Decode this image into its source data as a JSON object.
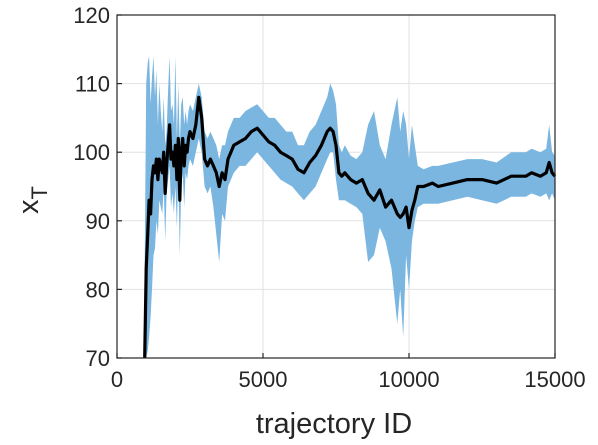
{
  "chart_data": {
    "type": "line",
    "title": "",
    "xlabel": "trajectory ID",
    "ylabel": {
      "base": "x",
      "subscript": "T"
    },
    "xlim": [
      0,
      15000
    ],
    "ylim": [
      70,
      120
    ],
    "xticks": [
      0,
      5000,
      10000,
      15000
    ],
    "xtick_labels": [
      "0",
      "5000",
      "10000",
      "15000"
    ],
    "yticks": [
      70,
      80,
      90,
      100,
      110,
      120
    ],
    "ytick_labels": [
      "70",
      "80",
      "90",
      "100",
      "110",
      "120"
    ],
    "grid": true,
    "colors": {
      "mean_line": "#000000",
      "band": "#7ab6e0",
      "axes": "#262626",
      "grid": "#e2e2e2"
    },
    "series": [
      {
        "kind": "line",
        "x": [
          950,
          1000,
          1050,
          1100,
          1150,
          1200,
          1250,
          1300,
          1350,
          1400,
          1450,
          1500,
          1550,
          1600,
          1650,
          1700,
          1750,
          1800,
          1850,
          1900,
          1950,
          2000,
          2050,
          2100,
          2150,
          2200,
          2250,
          2300,
          2350,
          2400,
          2450,
          2500,
          2600,
          2700,
          2800,
          2900,
          3000,
          3100,
          3200,
          3300,
          3400,
          3500,
          3600,
          3700,
          3800,
          3900,
          4000,
          4200,
          4400,
          4600,
          4800,
          5000,
          5200,
          5400,
          5600,
          5800,
          6000,
          6200,
          6400,
          6600,
          6800,
          7000,
          7200,
          7300,
          7400,
          7500,
          7600,
          7700,
          7800,
          8000,
          8200,
          8400,
          8600,
          8800,
          9000,
          9200,
          9400,
          9600,
          9700,
          9800,
          9900,
          10000,
          10100,
          10200,
          10300,
          10500,
          10800,
          11000,
          11500,
          12000,
          12500,
          13000,
          13500,
          14000,
          14200,
          14500,
          14700,
          14800,
          14900,
          15000
        ],
        "y": [
          70,
          83,
          88,
          93,
          91,
          96,
          98,
          97,
          99,
          96,
          99,
          98,
          97,
          100,
          94,
          98,
          101,
          104,
          99,
          100,
          98,
          101,
          96,
          102,
          93,
          100,
          102,
          98,
          101,
          100,
          102,
          103,
          102,
          104,
          108,
          105,
          99,
          98,
          99,
          98,
          97,
          95,
          97,
          96,
          99,
          100,
          101,
          101.5,
          102,
          103,
          103.5,
          102.5,
          101.5,
          101,
          100,
          99.5,
          99,
          97.5,
          97,
          98.5,
          99.5,
          101,
          103,
          103.5,
          103,
          101,
          97,
          96.5,
          97,
          96,
          95.5,
          96,
          94,
          93,
          94.5,
          92,
          93,
          91,
          90.5,
          91,
          92,
          89,
          91.5,
          93,
          95,
          95,
          95.5,
          95,
          95.5,
          96,
          96,
          95.5,
          96.5,
          96.5,
          97,
          96.5,
          97,
          98.5,
          97,
          96.5
        ]
      },
      {
        "kind": "band",
        "x": [
          950,
          1000,
          1050,
          1100,
          1150,
          1200,
          1250,
          1300,
          1350,
          1400,
          1450,
          1500,
          1550,
          1600,
          1650,
          1700,
          1750,
          1800,
          1850,
          1900,
          1950,
          2000,
          2050,
          2100,
          2150,
          2200,
          2250,
          2300,
          2350,
          2400,
          2450,
          2500,
          2600,
          2700,
          2800,
          2900,
          3000,
          3100,
          3200,
          3300,
          3400,
          3500,
          3600,
          3700,
          3800,
          3900,
          4000,
          4200,
          4400,
          4600,
          4800,
          5000,
          5200,
          5400,
          5600,
          5800,
          6000,
          6200,
          6400,
          6600,
          6800,
          7000,
          7200,
          7300,
          7400,
          7500,
          7600,
          7700,
          7800,
          8000,
          8200,
          8400,
          8600,
          8800,
          9000,
          9200,
          9400,
          9600,
          9700,
          9800,
          9900,
          10000,
          10100,
          10200,
          10300,
          10500,
          10800,
          11000,
          11500,
          12000,
          12500,
          13000,
          13500,
          14000,
          14200,
          14500,
          14700,
          14800,
          14900,
          15000
        ],
        "upper": [
          84,
          110,
          113,
          114,
          107,
          111,
          114,
          108,
          112,
          104,
          110,
          106,
          103,
          108,
          101,
          103,
          109,
          114,
          106,
          107,
          104,
          114,
          102,
          110,
          101,
          107,
          108,
          104,
          106,
          104,
          106,
          107,
          106,
          108,
          110,
          108,
          103,
          102,
          103,
          102,
          101,
          99,
          101,
          101,
          103,
          104,
          105,
          105,
          106,
          106.5,
          107,
          106,
          105,
          105,
          104,
          103,
          103,
          101,
          101,
          103,
          104,
          106,
          108,
          110,
          109,
          107,
          101,
          100,
          101,
          99.5,
          99,
          100,
          104,
          106,
          101,
          99,
          104,
          108,
          103,
          106,
          104,
          99,
          104,
          101,
          98,
          97.5,
          98,
          98,
          98.5,
          99,
          99,
          98.5,
          100,
          100,
          100.5,
          100,
          100.5,
          104,
          100,
          99.5
        ],
        "lower": [
          70,
          70,
          71,
          73,
          76,
          80,
          85,
          86,
          90,
          88,
          93,
          92,
          91,
          95,
          87,
          94,
          96,
          98,
          92,
          94,
          91,
          95,
          89,
          97,
          85,
          95,
          97,
          92,
          97,
          96,
          98,
          99,
          98,
          100,
          102,
          100,
          95,
          94,
          95,
          92,
          88,
          84,
          91,
          90,
          95,
          96,
          97,
          98,
          98,
          99,
          100,
          99,
          98,
          97,
          96,
          95.5,
          95,
          94,
          93,
          94,
          95,
          97,
          99,
          100,
          100,
          96,
          93,
          93,
          93,
          92.5,
          92,
          91,
          84,
          85,
          89,
          87,
          83,
          75,
          80,
          73,
          85,
          80,
          87,
          90,
          92,
          92.5,
          92.5,
          92.5,
          93,
          93.5,
          93,
          92.5,
          93.5,
          93.5,
          94,
          93.5,
          94,
          93,
          94,
          93
        ]
      }
    ]
  }
}
